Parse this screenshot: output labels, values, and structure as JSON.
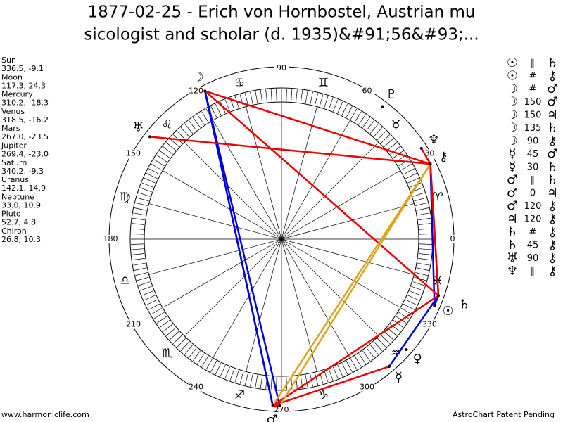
{
  "title": [
    "1877-02-25 - Erich von Hornbostel, Austrian mu",
    "sicologist and scholar (d. 1935)&#91;56&#93;..."
  ],
  "planets": [
    {
      "name": "Sun",
      "glyph": "☉",
      "coords": "336.5, -9.1"
    },
    {
      "name": "Moon",
      "glyph": "☽",
      "coords": "117.3, 24.3"
    },
    {
      "name": "Mercury",
      "glyph": "☿",
      "coords": "310.2, -18.3"
    },
    {
      "name": "Venus",
      "glyph": "♀",
      "coords": "318.5, -16.2"
    },
    {
      "name": "Mars",
      "glyph": "♂",
      "coords": "267.0, -23.5"
    },
    {
      "name": "Jupiter",
      "glyph": "♃",
      "coords": "269.4, -23.0"
    },
    {
      "name": "Saturn",
      "glyph": "♄",
      "coords": "340.2, -9.3"
    },
    {
      "name": "Uranus",
      "glyph": "♅",
      "coords": "142.1, 14.9"
    },
    {
      "name": "Neptune",
      "glyph": "♆",
      "coords": "33.0, 10.9"
    },
    {
      "name": "Pluto",
      "glyph": "♇",
      "coords": "52.7, 4.8"
    },
    {
      "name": "Chiron",
      "glyph": "⚷",
      "coords": "26.8, 10.3"
    }
  ],
  "signs": [
    "♈",
    "♉",
    "♊",
    "♋",
    "♌",
    "♍",
    "♎",
    "♏",
    "♐",
    "♑",
    "♒",
    "♓"
  ],
  "degree_labels": [
    0,
    30,
    60,
    90,
    120,
    150,
    180,
    210,
    240,
    270,
    300,
    330
  ],
  "aspects": [
    {
      "p1": "☉",
      "aspect": "∥",
      "p2": "♄",
      "color": "#0000dd"
    },
    {
      "p1": "☉",
      "aspect": "#",
      "p2": "⚷",
      "color": "#0000dd"
    },
    {
      "p1": "☽",
      "aspect": "#",
      "p2": "♂",
      "color": "#0000dd"
    },
    {
      "p1": "☽",
      "aspect": "150",
      "p2": "♂",
      "color": "#0000dd"
    },
    {
      "p1": "☽",
      "aspect": "150",
      "p2": "♃",
      "color": "#0000dd"
    },
    {
      "p1": "☽",
      "aspect": "135",
      "p2": "♄",
      "color": "#ee0000"
    },
    {
      "p1": "☽",
      "aspect": "90",
      "p2": "⚷",
      "color": "#ee0000"
    },
    {
      "p1": "☿",
      "aspect": "45",
      "p2": "♂",
      "color": "#ee0000"
    },
    {
      "p1": "☿",
      "aspect": "30",
      "p2": "♄",
      "color": "#0000dd"
    },
    {
      "p1": "♂",
      "aspect": "∥",
      "p2": "♄",
      "color": "#ee0000"
    },
    {
      "p1": "♂",
      "aspect": "0",
      "p2": "♃",
      "color": "#ee0000"
    },
    {
      "p1": "♂",
      "aspect": "120",
      "p2": "⚷",
      "color": "#daa520"
    },
    {
      "p1": "♃",
      "aspect": "120",
      "p2": "⚷",
      "color": "#daa520"
    },
    {
      "p1": "♄",
      "aspect": "#",
      "p2": "⚷",
      "color": "#ee0000"
    },
    {
      "p1": "♄",
      "aspect": "45",
      "p2": "⚷",
      "color": "#ee0000"
    },
    {
      "p1": "♅",
      "aspect": "90",
      "p2": "⚷",
      "color": "#ee0000"
    },
    {
      "p1": "♆",
      "aspect": "∥",
      "p2": "⚷",
      "color": "#ee0000"
    }
  ],
  "footer": {
    "left": "www.harmoniclife.com",
    "right": "AstroChart Patent Pending"
  }
}
